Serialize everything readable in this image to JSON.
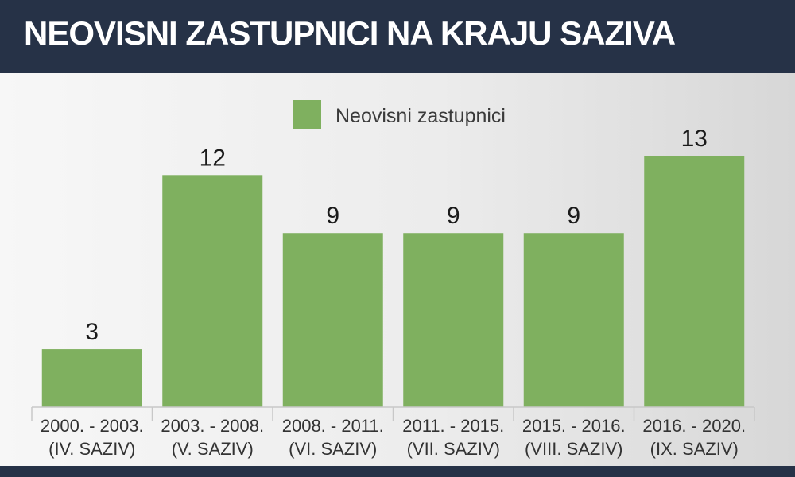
{
  "header": {
    "title": "NEOVISNI ZASTUPNICI NA KRAJU SAZIVA"
  },
  "colors": {
    "bar": "#7fb05f",
    "header_bg": "#263247",
    "text": "#1a1a1a",
    "axis": "#c8c8c8"
  },
  "chart_data": {
    "type": "bar",
    "title": "",
    "xlabel": "",
    "ylabel": "",
    "legend": {
      "position": "top-center"
    },
    "grid": false,
    "ylim": [
      0,
      13
    ],
    "categories": [
      [
        "2000. - 2003.",
        "(IV. SAZIV)"
      ],
      [
        "2003. - 2008.",
        "(V. SAZIV)"
      ],
      [
        "2008. - 2011.",
        "(VI. SAZIV)"
      ],
      [
        "2011. - 2015.",
        "(VII. SAZIV)"
      ],
      [
        "2015. - 2016.",
        "(VIII. SAZIV)"
      ],
      [
        "2016. - 2020.",
        "(IX. SAZIV)"
      ]
    ],
    "series": [
      {
        "name": "Neovisni zastupnici",
        "values": [
          3,
          12,
          9,
          9,
          9,
          13
        ]
      }
    ]
  }
}
